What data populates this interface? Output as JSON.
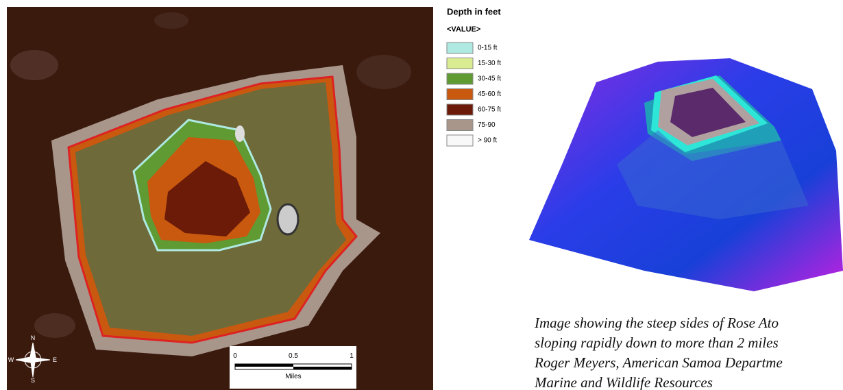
{
  "legend": {
    "title": "Depth in feet",
    "field": "<VALUE>",
    "items": [
      {
        "label": "0-15 ft",
        "color": "#aee9e2"
      },
      {
        "label": "15-30 ft",
        "color": "#d9ec92"
      },
      {
        "label": "30-45 ft",
        "color": "#5f9a33"
      },
      {
        "label": "45-60 ft",
        "color": "#c9590f"
      },
      {
        "label": "60-75 ft",
        "color": "#6b1b08"
      },
      {
        "label": "75-90",
        "color": "#a8968b"
      },
      {
        "label": "> 90 ft",
        "color": "#f8f8f8"
      }
    ]
  },
  "compass": {
    "n": "N",
    "s": "S",
    "e": "E",
    "w": "W"
  },
  "scale_bar": {
    "ticks": [
      "0",
      "0.5",
      "1"
    ],
    "unit": "Miles"
  },
  "caption": {
    "lines": [
      "Image showing the steep sides of Rose Ato",
      "sloping rapidly down to more than 2 miles",
      "Roger Meyers, American Samoa Departme",
      "Marine and Wildlife Resources"
    ]
  }
}
